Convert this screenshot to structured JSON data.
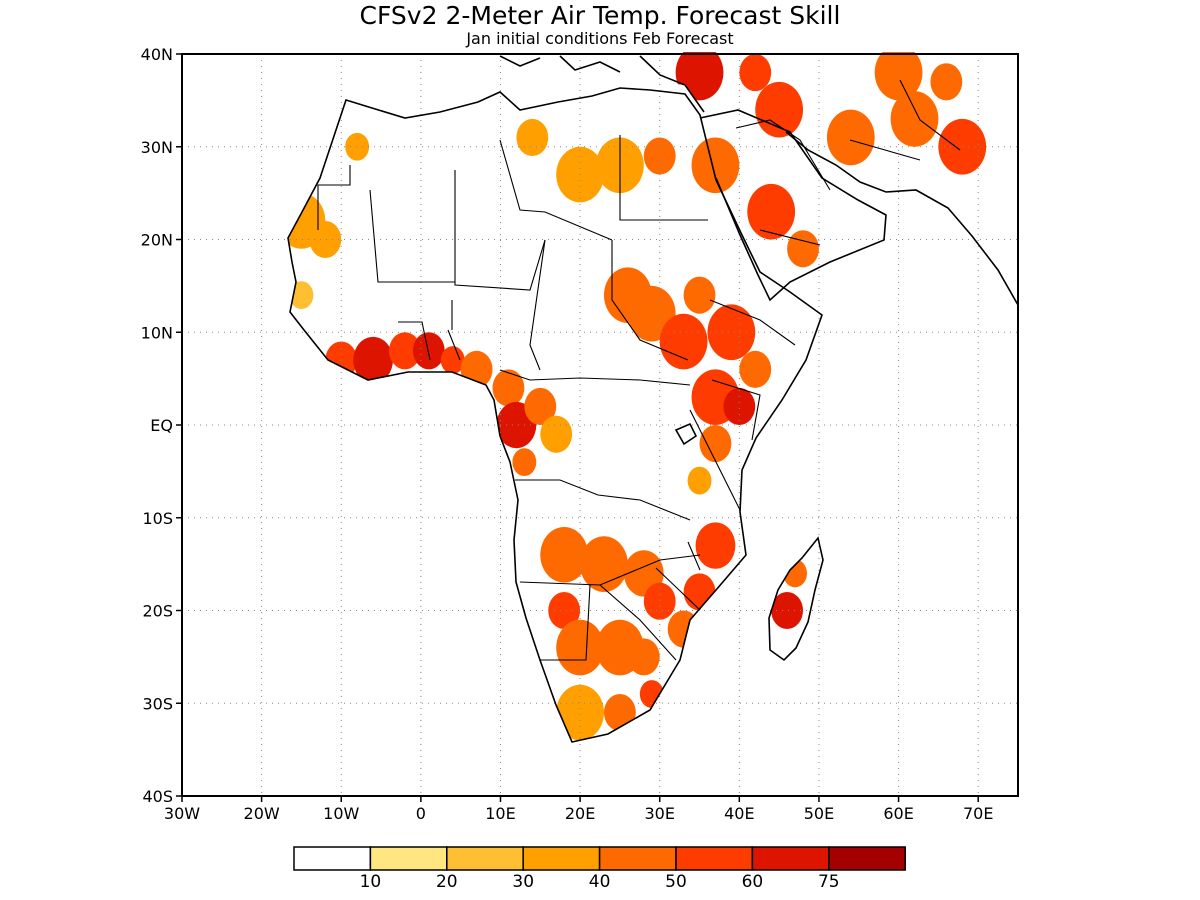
{
  "title": "CFSv2 2-Meter Air Temp. Forecast Skill",
  "subtitle": "Jan initial conditions  Feb Forecast",
  "y_tick_labels": [
    "40N",
    "30N",
    "20N",
    "10N",
    "EQ",
    "10S",
    "20S",
    "30S",
    "40S"
  ],
  "x_tick_labels": [
    "30W",
    "20W",
    "10W",
    "0",
    "10E",
    "20E",
    "30E",
    "40E",
    "50E",
    "60E",
    "70E"
  ],
  "colorbar": {
    "labels": [
      "10",
      "20",
      "30",
      "40",
      "50",
      "60",
      "75"
    ],
    "colors": [
      "#ffffff",
      "#ffe680",
      "#ffbf33",
      "#ff9f00",
      "#ff6a00",
      "#ff3c00",
      "#dd1500",
      "#a50000"
    ]
  },
  "chart_data": {
    "type": "heatmap",
    "variable": "2-meter air temperature forecast skill",
    "lon_range": [
      -30,
      75
    ],
    "lat_range": [
      -40,
      40
    ],
    "grid": true,
    "legend_position": "bottom",
    "category_bounds": [
      10,
      20,
      30,
      40,
      50,
      60,
      75
    ],
    "regions": [
      {
        "lon": -15,
        "lat": 22,
        "r": 3,
        "v": 35
      },
      {
        "lon": -12,
        "lat": 20,
        "r": 2,
        "v": 30
      },
      {
        "lon": -15,
        "lat": 14,
        "r": 1.5,
        "v": 25
      },
      {
        "lon": -8,
        "lat": 30,
        "r": 1.5,
        "v": 30
      },
      {
        "lon": -10,
        "lat": 7,
        "r": 2,
        "v": 55
      },
      {
        "lon": -6,
        "lat": 7,
        "r": 2.5,
        "v": 60
      },
      {
        "lon": -2,
        "lat": 8,
        "r": 2,
        "v": 55
      },
      {
        "lon": 1,
        "lat": 8,
        "r": 2,
        "v": 60
      },
      {
        "lon": 4,
        "lat": 7,
        "r": 1.5,
        "v": 50
      },
      {
        "lon": 7,
        "lat": 6,
        "r": 2,
        "v": 45
      },
      {
        "lon": 11,
        "lat": 4,
        "r": 2,
        "v": 45
      },
      {
        "lon": 12,
        "lat": 0,
        "r": 2.5,
        "v": 60
      },
      {
        "lon": 15,
        "lat": 2,
        "r": 2,
        "v": 40
      },
      {
        "lon": 13,
        "lat": -4,
        "r": 1.5,
        "v": 40
      },
      {
        "lon": 17,
        "lat": -1,
        "r": 2,
        "v": 30
      },
      {
        "lon": 20,
        "lat": 27,
        "r": 3,
        "v": 35
      },
      {
        "lon": 25,
        "lat": 28,
        "r": 3,
        "v": 35
      },
      {
        "lon": 30,
        "lat": 29,
        "r": 2,
        "v": 40
      },
      {
        "lon": 14,
        "lat": 31,
        "r": 2,
        "v": 35
      },
      {
        "lon": 26,
        "lat": 14,
        "r": 3,
        "v": 45
      },
      {
        "lon": 29,
        "lat": 12,
        "r": 3,
        "v": 40
      },
      {
        "lon": 33,
        "lat": 9,
        "r": 3,
        "v": 50
      },
      {
        "lon": 35,
        "lat": 14,
        "r": 2,
        "v": 45
      },
      {
        "lon": 39,
        "lat": 10,
        "r": 3,
        "v": 50
      },
      {
        "lon": 42,
        "lat": 6,
        "r": 2,
        "v": 45
      },
      {
        "lon": 37,
        "lat": 3,
        "r": 3,
        "v": 50
      },
      {
        "lon": 40,
        "lat": 2,
        "r": 2,
        "v": 60
      },
      {
        "lon": 37,
        "lat": -2,
        "r": 2,
        "v": 40
      },
      {
        "lon": 35,
        "lat": -6,
        "r": 1.5,
        "v": 30
      },
      {
        "lon": 37,
        "lat": -13,
        "r": 2.5,
        "v": 55
      },
      {
        "lon": 35,
        "lat": -18,
        "r": 2,
        "v": 50
      },
      {
        "lon": 33,
        "lat": -22,
        "r": 2,
        "v": 45
      },
      {
        "lon": 18,
        "lat": -14,
        "r": 3,
        "v": 40
      },
      {
        "lon": 23,
        "lat": -15,
        "r": 3,
        "v": 45
      },
      {
        "lon": 28,
        "lat": -16,
        "r": 2.5,
        "v": 45
      },
      {
        "lon": 30,
        "lat": -19,
        "r": 2,
        "v": 50
      },
      {
        "lon": 18,
        "lat": -20,
        "r": 2,
        "v": 55
      },
      {
        "lon": 20,
        "lat": -24,
        "r": 3,
        "v": 40
      },
      {
        "lon": 25,
        "lat": -24,
        "r": 3,
        "v": 40
      },
      {
        "lon": 28,
        "lat": -25,
        "r": 2,
        "v": 45
      },
      {
        "lon": 29,
        "lat": -29,
        "r": 1.5,
        "v": 55
      },
      {
        "lon": 20,
        "lat": -31,
        "r": 3,
        "v": 35
      },
      {
        "lon": 25,
        "lat": -31,
        "r": 2,
        "v": 40
      },
      {
        "lon": 46,
        "lat": -20,
        "r": 2,
        "v": 60
      },
      {
        "lon": 47,
        "lat": -16,
        "r": 1.5,
        "v": 40
      },
      {
        "lon": 35,
        "lat": 38,
        "r": 3,
        "v": 60
      },
      {
        "lon": 42,
        "lat": 38,
        "r": 2,
        "v": 55
      },
      {
        "lon": 45,
        "lat": 34,
        "r": 3,
        "v": 50
      },
      {
        "lon": 37,
        "lat": 28,
        "r": 3,
        "v": 45
      },
      {
        "lon": 44,
        "lat": 23,
        "r": 3,
        "v": 55
      },
      {
        "lon": 48,
        "lat": 19,
        "r": 2,
        "v": 45
      },
      {
        "lon": 54,
        "lat": 31,
        "r": 3,
        "v": 45
      },
      {
        "lon": 62,
        "lat": 33,
        "r": 3,
        "v": 45
      },
      {
        "lon": 68,
        "lat": 30,
        "r": 3,
        "v": 50
      },
      {
        "lon": 60,
        "lat": 38,
        "r": 3,
        "v": 40
      },
      {
        "lon": 66,
        "lat": 37,
        "r": 2,
        "v": 45
      }
    ]
  }
}
